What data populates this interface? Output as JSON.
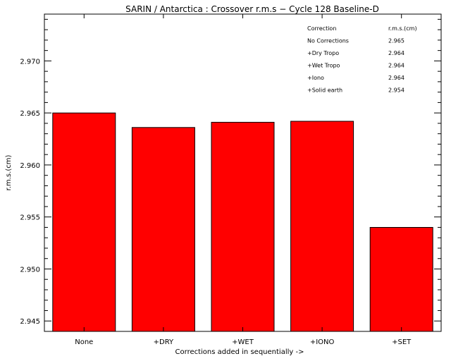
{
  "chart_data": {
    "type": "bar",
    "title": "SARIN / Antarctica : Crossover r.m.s − Cycle 128 Baseline-D",
    "xlabel": "Corrections added in sequentially ->",
    "ylabel": "r.m.s.(cm)",
    "categories": [
      "None",
      "+DRY",
      "+WET",
      "+IONO",
      "+SET"
    ],
    "values": [
      2.965,
      2.9636,
      2.9641,
      2.9642,
      2.954
    ],
    "ylim": [
      2.944,
      2.9745
    ],
    "yticks": [
      "2.945",
      "2.950",
      "2.955",
      "2.960",
      "2.965",
      "2.970"
    ],
    "bar_color": "#ff0000",
    "grid": false,
    "legend_table": {
      "headers": [
        "Correction",
        "r.m.s.(cm)"
      ],
      "rows": [
        {
          "label": "No Corrections",
          "value": "2.965"
        },
        {
          "label": "+Dry Tropo",
          "value": "2.964"
        },
        {
          "label": "+Wet Tropo",
          "value": "2.964"
        },
        {
          "label": "+Iono",
          "value": "2.964"
        },
        {
          "label": "+Solid earth",
          "value": "2.954"
        }
      ],
      "placement": "top-right"
    }
  }
}
